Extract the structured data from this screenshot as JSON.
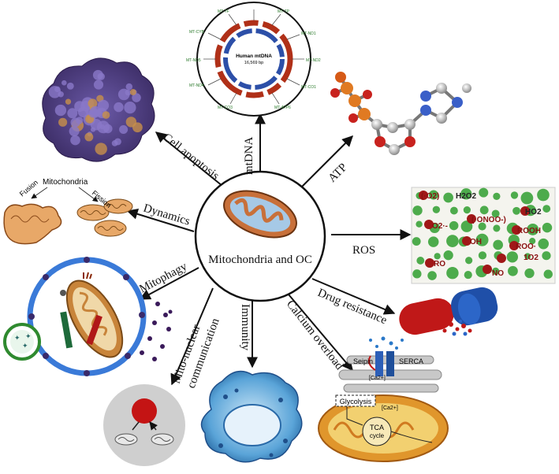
{
  "center": {
    "title": "Mitochondria and OC"
  },
  "spokes": {
    "mtdna": "mtDNA",
    "atp": "ATP",
    "ros": "ROS",
    "drug": "Drug resistance",
    "calcium": "Calcium overload",
    "immunity": "Immunity",
    "mitonuclear_1": "Mito-nuclear",
    "mitonuclear_2": "communication",
    "mitophagy": "Mitophagy",
    "dynamics": "Dynamics",
    "apoptosis": "Cell apoptosis"
  },
  "mtdna_map": {
    "title": "Human mtDNA",
    "size": "16,569 bp"
  },
  "dynamics_panel": {
    "mito": "Mitochondria",
    "fusion": "Fusion",
    "fission": "Fission"
  },
  "ros_species": [
    "(·O2)",
    "H2O2",
    "HO2",
    "O2·-",
    "(·ONOO-)",
    "ROOH",
    "OH",
    "ROO·",
    "1O2",
    "RO",
    "NO"
  ],
  "calcium_panel": {
    "seipin": "Seipin",
    "serca": "SERCA",
    "ca1": "[Ca2+]",
    "ca2": "[Ca2+]",
    "glycolysis": "Glycolysis",
    "tca_1": "TCA",
    "tca_2": "cycle"
  },
  "colors": {
    "spoke": "#111111",
    "center_ring": "#111111",
    "mito_outer": "#c8703a",
    "mito_inner": "#9fc3e2",
    "ros_green": "#2f9d2f",
    "ros_red": "#a01818"
  }
}
